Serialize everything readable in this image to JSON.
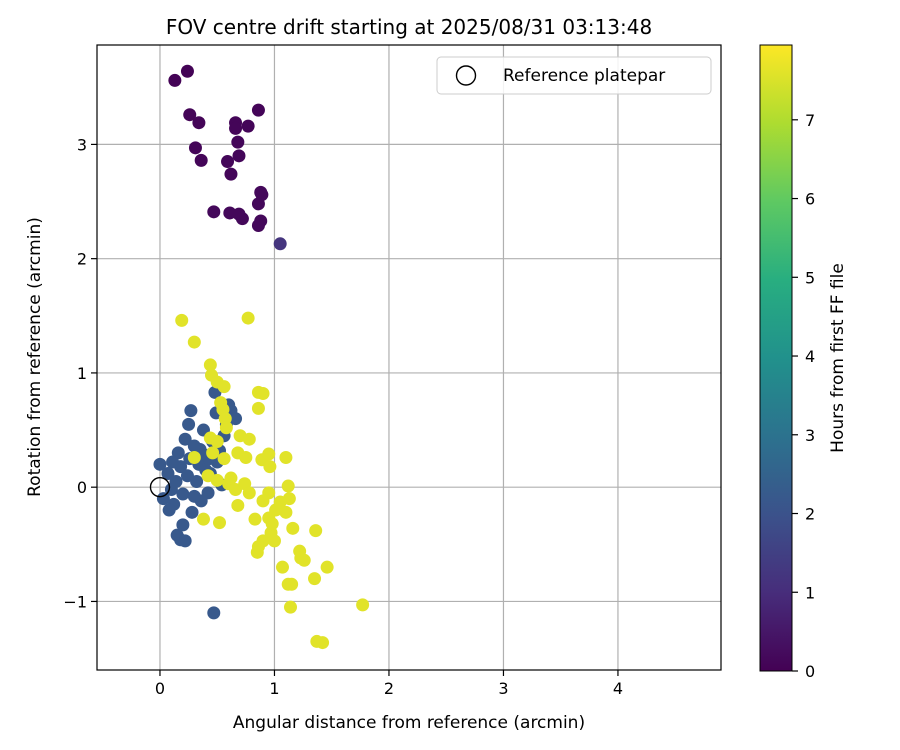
{
  "chart_data": {
    "type": "scatter",
    "title": "FOV centre drift starting at 2025/08/31 03:13:48",
    "xlabel": "Angular distance from reference (arcmin)",
    "ylabel": "Rotation from reference (arcmin)",
    "xlim": [
      -0.55,
      4.9
    ],
    "ylim": [
      -1.6,
      3.87
    ],
    "x_ticks": [
      0,
      1,
      2,
      3,
      4
    ],
    "y_ticks": [
      -1,
      0,
      1,
      2,
      3
    ],
    "grid": true,
    "legend": {
      "position": "top-right",
      "entries": [
        "Reference platepar"
      ]
    },
    "reference_point": {
      "x": 0,
      "y": 0
    },
    "colorbar": {
      "label": "Hours from first FF file",
      "colormap": "viridis",
      "range": [
        0,
        7.95
      ],
      "ticks": [
        0,
        1,
        2,
        3,
        4,
        5,
        6,
        7
      ]
    },
    "series": [
      {
        "points": [
          {
            "x": 0.13,
            "y": 3.56,
            "c": 0.05
          },
          {
            "x": 0.24,
            "y": 3.64,
            "c": 0.05
          },
          {
            "x": 0.26,
            "y": 3.26,
            "c": 0.08
          },
          {
            "x": 0.34,
            "y": 3.19,
            "c": 0.08
          },
          {
            "x": 0.31,
            "y": 2.97,
            "c": 0.1
          },
          {
            "x": 0.36,
            "y": 2.86,
            "c": 0.1
          },
          {
            "x": 0.47,
            "y": 2.41,
            "c": 0.15
          },
          {
            "x": 0.61,
            "y": 2.4,
            "c": 0.15
          },
          {
            "x": 0.66,
            "y": 3.19,
            "c": 0.1
          },
          {
            "x": 0.66,
            "y": 3.14,
            "c": 0.1
          },
          {
            "x": 0.77,
            "y": 3.16,
            "c": 0.1
          },
          {
            "x": 0.86,
            "y": 3.3,
            "c": 0.1
          },
          {
            "x": 0.68,
            "y": 3.02,
            "c": 0.12
          },
          {
            "x": 0.59,
            "y": 2.85,
            "c": 0.12
          },
          {
            "x": 0.69,
            "y": 2.9,
            "c": 0.12
          },
          {
            "x": 0.62,
            "y": 2.74,
            "c": 0.12
          },
          {
            "x": 0.88,
            "y": 2.58,
            "c": 0.15
          },
          {
            "x": 0.86,
            "y": 2.48,
            "c": 0.15
          },
          {
            "x": 0.89,
            "y": 2.56,
            "c": 0.15
          },
          {
            "x": 0.69,
            "y": 2.39,
            "c": 0.15
          },
          {
            "x": 0.72,
            "y": 2.35,
            "c": 0.15
          },
          {
            "x": 0.88,
            "y": 2.33,
            "c": 0.15
          },
          {
            "x": 0.86,
            "y": 2.29,
            "c": 0.15
          },
          {
            "x": 1.05,
            "y": 2.13,
            "c": 1.2
          }
        ]
      },
      {
        "points": [
          {
            "x": 0.0,
            "y": 0.2,
            "c": 2.2
          },
          {
            "x": 0.03,
            "y": -0.1,
            "c": 2.2
          },
          {
            "x": 0.07,
            "y": 0.12,
            "c": 2.2
          },
          {
            "x": 0.1,
            "y": -0.02,
            "c": 2.2
          },
          {
            "x": 0.12,
            "y": -0.15,
            "c": 2.2
          },
          {
            "x": 0.14,
            "y": 0.05,
            "c": 2.2
          },
          {
            "x": 0.16,
            "y": 0.3,
            "c": 2.2
          },
          {
            "x": 0.18,
            "y": 0.18,
            "c": 2.2
          },
          {
            "x": 0.2,
            "y": -0.06,
            "c": 2.2
          },
          {
            "x": 0.22,
            "y": 0.42,
            "c": 2.2
          },
          {
            "x": 0.24,
            "y": 0.1,
            "c": 2.2
          },
          {
            "x": 0.25,
            "y": 0.55,
            "c": 2.2
          },
          {
            "x": 0.27,
            "y": 0.67,
            "c": 2.2
          },
          {
            "x": 0.28,
            "y": -0.22,
            "c": 2.2
          },
          {
            "x": 0.3,
            "y": 0.36,
            "c": 2.2
          },
          {
            "x": 0.32,
            "y": 0.05,
            "c": 2.2
          },
          {
            "x": 0.34,
            "y": 0.2,
            "c": 2.2
          },
          {
            "x": 0.36,
            "y": -0.12,
            "c": 2.2
          },
          {
            "x": 0.38,
            "y": 0.5,
            "c": 2.2
          },
          {
            "x": 0.4,
            "y": 0.28,
            "c": 2.2
          },
          {
            "x": 0.42,
            "y": -0.05,
            "c": 2.2
          },
          {
            "x": 0.44,
            "y": 0.12,
            "c": 2.2
          },
          {
            "x": 0.46,
            "y": 0.4,
            "c": 2.2
          },
          {
            "x": 0.48,
            "y": 0.83,
            "c": 2.2
          },
          {
            "x": 0.49,
            "y": 0.65,
            "c": 2.2
          },
          {
            "x": 0.52,
            "y": 0.32,
            "c": 2.2
          },
          {
            "x": 0.54,
            "y": 0.02,
            "c": 2.2
          },
          {
            "x": 0.56,
            "y": 0.45,
            "c": 2.2
          },
          {
            "x": 0.58,
            "y": 0.55,
            "c": 2.2
          },
          {
            "x": 0.62,
            "y": 0.67,
            "c": 2.2
          },
          {
            "x": 0.66,
            "y": 0.6,
            "c": 2.2
          },
          {
            "x": 0.6,
            "y": 0.72,
            "c": 2.2
          },
          {
            "x": 0.15,
            "y": -0.42,
            "c": 2.2
          },
          {
            "x": 0.18,
            "y": -0.46,
            "c": 2.2
          },
          {
            "x": 0.22,
            "y": -0.47,
            "c": 2.2
          },
          {
            "x": 0.2,
            "y": -0.33,
            "c": 2.2
          },
          {
            "x": 0.08,
            "y": -0.2,
            "c": 2.2
          },
          {
            "x": 0.11,
            "y": 0.22,
            "c": 2.2
          },
          {
            "x": 0.26,
            "y": 0.25,
            "c": 2.2
          },
          {
            "x": 0.35,
            "y": 0.33,
            "c": 2.2
          },
          {
            "x": 0.4,
            "y": 0.15,
            "c": 2.2
          },
          {
            "x": 0.47,
            "y": -1.1,
            "c": 2.2
          },
          {
            "x": 0.43,
            "y": 0.25,
            "c": 2.2
          },
          {
            "x": 0.3,
            "y": -0.08,
            "c": 2.2
          },
          {
            "x": 0.5,
            "y": 0.22,
            "c": 2.2
          }
        ]
      },
      {
        "points": [
          {
            "x": 0.19,
            "y": 1.46,
            "c": 7.6
          },
          {
            "x": 0.3,
            "y": 1.27,
            "c": 7.6
          },
          {
            "x": 0.77,
            "y": 1.48,
            "c": 7.6
          },
          {
            "x": 0.44,
            "y": 1.07,
            "c": 7.6
          },
          {
            "x": 0.45,
            "y": 0.98,
            "c": 7.6
          },
          {
            "x": 0.5,
            "y": 0.92,
            "c": 7.6
          },
          {
            "x": 0.56,
            "y": 0.88,
            "c": 7.6
          },
          {
            "x": 0.86,
            "y": 0.83,
            "c": 7.6
          },
          {
            "x": 0.9,
            "y": 0.82,
            "c": 7.6
          },
          {
            "x": 0.53,
            "y": 0.74,
            "c": 7.6
          },
          {
            "x": 0.55,
            "y": 0.68,
            "c": 7.6
          },
          {
            "x": 0.86,
            "y": 0.69,
            "c": 7.6
          },
          {
            "x": 0.57,
            "y": 0.6,
            "c": 7.6
          },
          {
            "x": 0.58,
            "y": 0.52,
            "c": 7.6
          },
          {
            "x": 0.44,
            "y": 0.43,
            "c": 7.6
          },
          {
            "x": 0.5,
            "y": 0.4,
            "c": 7.6
          },
          {
            "x": 0.7,
            "y": 0.45,
            "c": 7.6
          },
          {
            "x": 0.78,
            "y": 0.42,
            "c": 7.6
          },
          {
            "x": 0.46,
            "y": 0.3,
            "c": 7.6
          },
          {
            "x": 0.68,
            "y": 0.3,
            "c": 7.6
          },
          {
            "x": 0.75,
            "y": 0.26,
            "c": 7.6
          },
          {
            "x": 0.89,
            "y": 0.24,
            "c": 7.6
          },
          {
            "x": 0.95,
            "y": 0.29,
            "c": 7.6
          },
          {
            "x": 1.1,
            "y": 0.26,
            "c": 7.6
          },
          {
            "x": 0.96,
            "y": 0.18,
            "c": 7.6
          },
          {
            "x": 0.3,
            "y": 0.26,
            "c": 7.6
          },
          {
            "x": 0.42,
            "y": 0.1,
            "c": 7.6
          },
          {
            "x": 0.5,
            "y": 0.06,
            "c": 7.6
          },
          {
            "x": 0.6,
            "y": 0.03,
            "c": 7.6
          },
          {
            "x": 0.66,
            "y": -0.02,
            "c": 7.6
          },
          {
            "x": 0.74,
            "y": 0.03,
            "c": 7.6
          },
          {
            "x": 0.78,
            "y": -0.05,
            "c": 7.6
          },
          {
            "x": 0.95,
            "y": -0.05,
            "c": 7.6
          },
          {
            "x": 0.9,
            "y": -0.12,
            "c": 7.6
          },
          {
            "x": 1.12,
            "y": 0.01,
            "c": 7.6
          },
          {
            "x": 1.13,
            "y": -0.1,
            "c": 7.6
          },
          {
            "x": 1.1,
            "y": -0.22,
            "c": 7.6
          },
          {
            "x": 1.16,
            "y": -0.36,
            "c": 7.6
          },
          {
            "x": 1.01,
            "y": -0.2,
            "c": 7.6
          },
          {
            "x": 0.95,
            "y": -0.27,
            "c": 7.6
          },
          {
            "x": 0.83,
            "y": -0.28,
            "c": 7.6
          },
          {
            "x": 0.68,
            "y": -0.16,
            "c": 7.6
          },
          {
            "x": 0.52,
            "y": -0.31,
            "c": 7.6
          },
          {
            "x": 0.38,
            "y": -0.28,
            "c": 7.6
          },
          {
            "x": 0.97,
            "y": -0.4,
            "c": 7.6
          },
          {
            "x": 1.0,
            "y": -0.47,
            "c": 7.6
          },
          {
            "x": 0.9,
            "y": -0.47,
            "c": 7.6
          },
          {
            "x": 0.86,
            "y": -0.52,
            "c": 7.6
          },
          {
            "x": 0.85,
            "y": -0.57,
            "c": 7.6
          },
          {
            "x": 1.22,
            "y": -0.56,
            "c": 7.6
          },
          {
            "x": 1.26,
            "y": -0.64,
            "c": 7.6
          },
          {
            "x": 1.23,
            "y": -0.62,
            "c": 7.6
          },
          {
            "x": 1.07,
            "y": -0.7,
            "c": 7.6
          },
          {
            "x": 1.36,
            "y": -0.38,
            "c": 7.6
          },
          {
            "x": 1.46,
            "y": -0.7,
            "c": 7.6
          },
          {
            "x": 1.35,
            "y": -0.8,
            "c": 7.6
          },
          {
            "x": 1.12,
            "y": -0.85,
            "c": 7.6
          },
          {
            "x": 1.15,
            "y": -0.85,
            "c": 7.6
          },
          {
            "x": 1.14,
            "y": -1.05,
            "c": 7.6
          },
          {
            "x": 1.77,
            "y": -1.03,
            "c": 7.6
          },
          {
            "x": 1.37,
            "y": -1.35,
            "c": 7.6
          },
          {
            "x": 1.42,
            "y": -1.36,
            "c": 7.6
          },
          {
            "x": 0.56,
            "y": 0.25,
            "c": 7.6
          },
          {
            "x": 0.62,
            "y": 0.08,
            "c": 7.6
          },
          {
            "x": 0.98,
            "y": -0.32,
            "c": 7.6
          },
          {
            "x": 1.05,
            "y": -0.13,
            "c": 7.6
          }
        ]
      }
    ]
  }
}
